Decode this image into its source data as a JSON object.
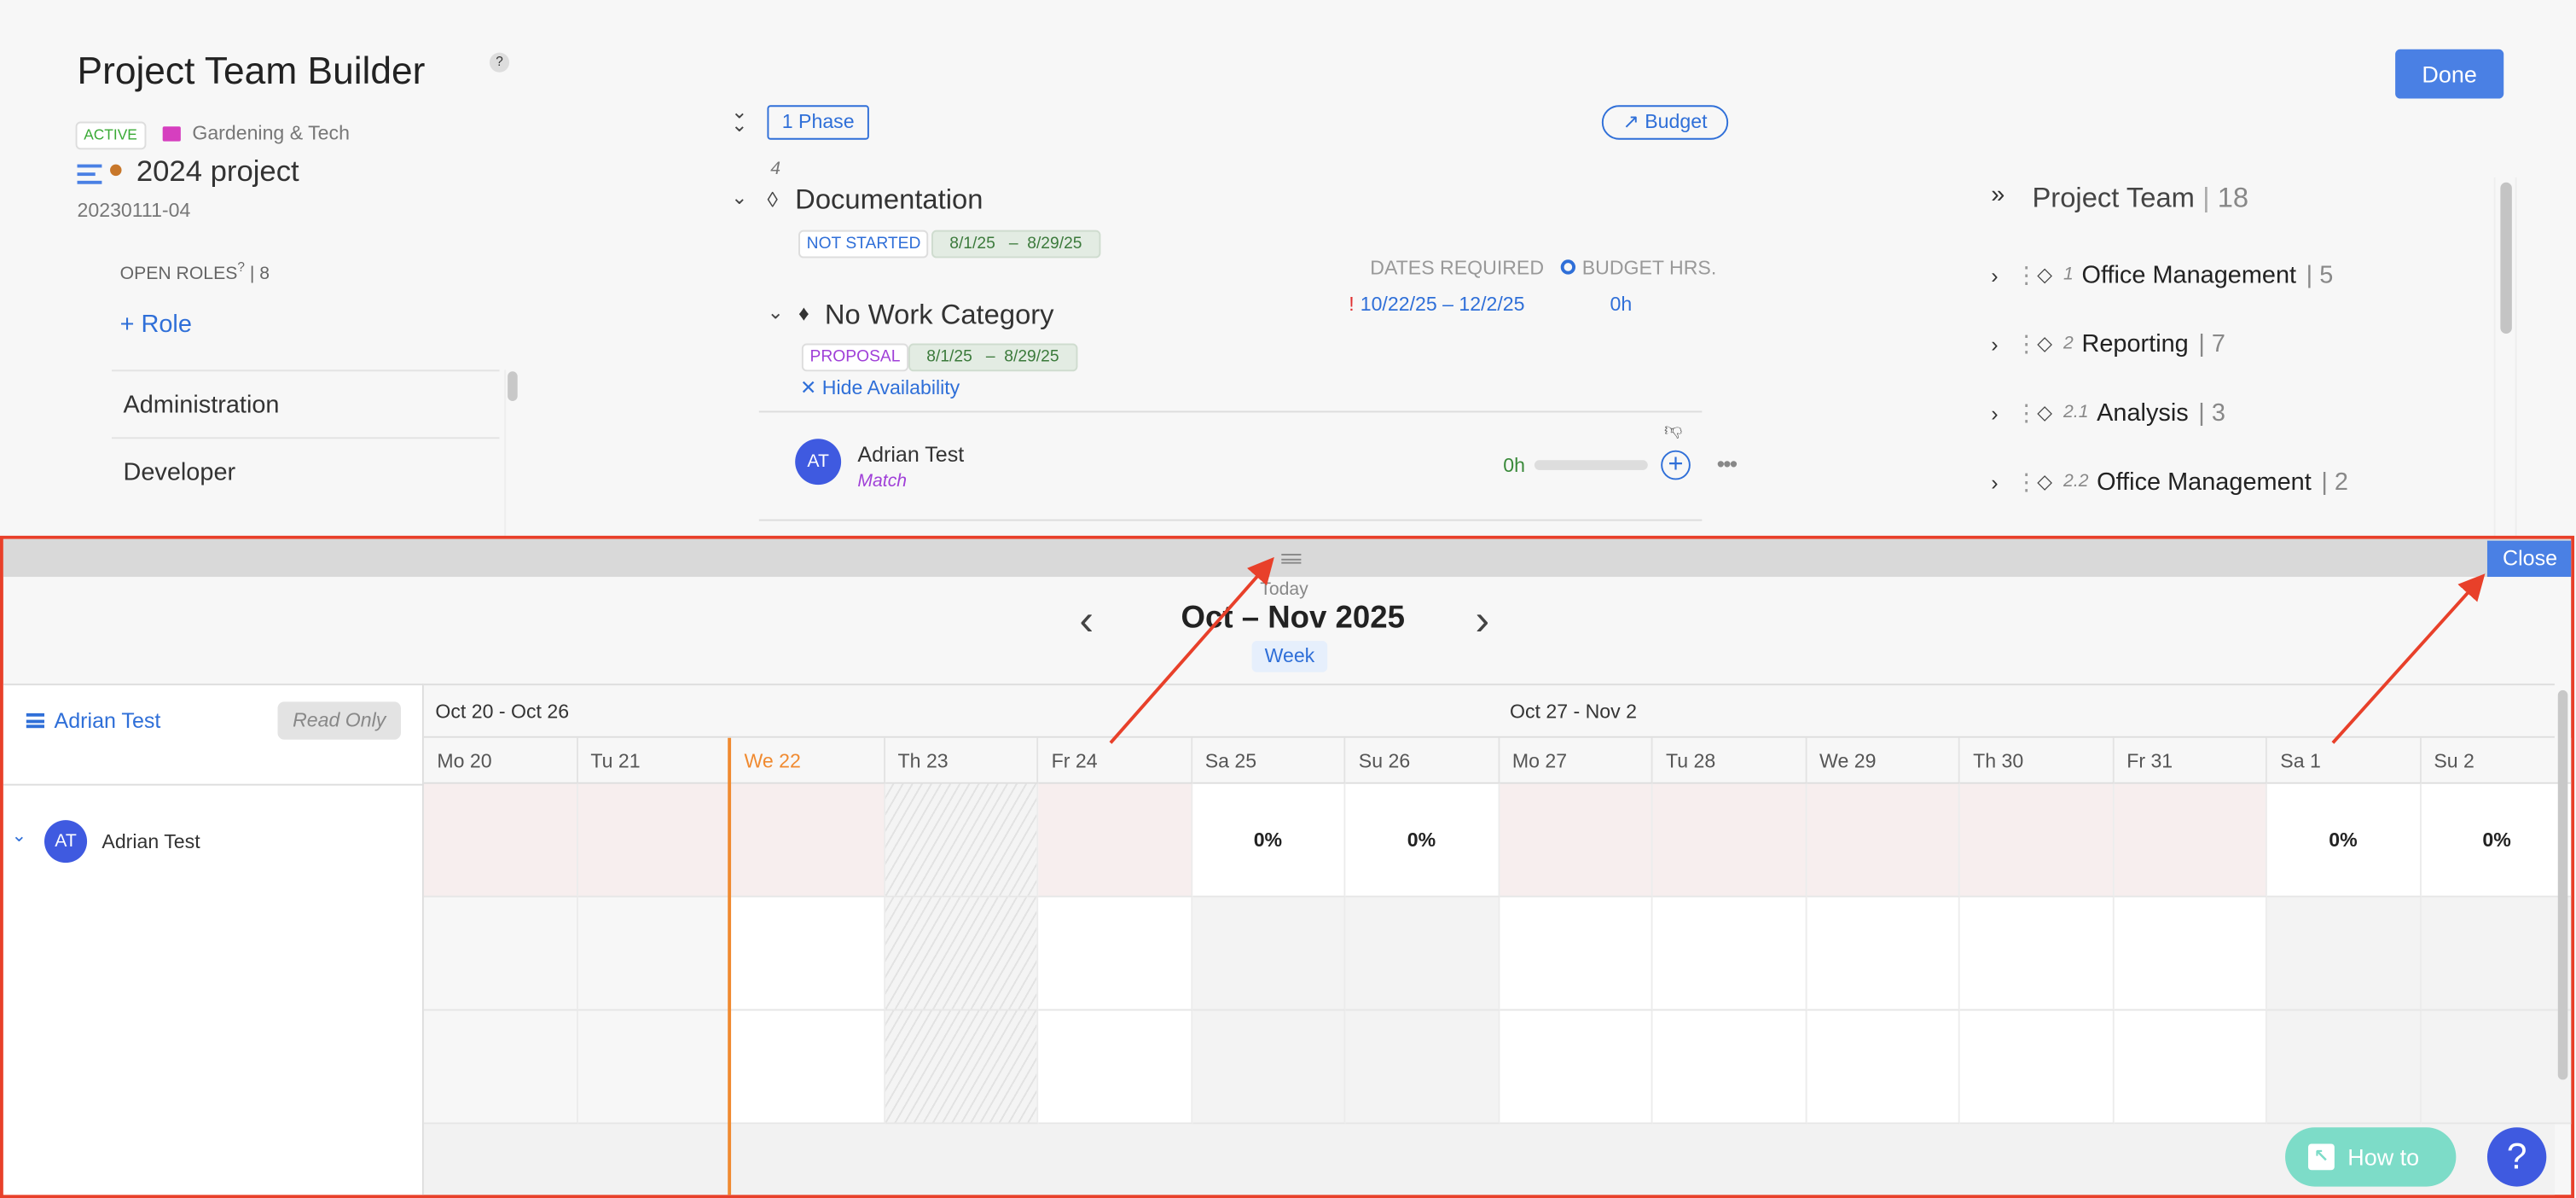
{
  "header": {
    "title": "Project Team Builder",
    "help": "?",
    "status": "ACTIVE",
    "client": "Gardening & Tech",
    "project_name": "2024 project",
    "project_number": "20230111-04",
    "done_label": "Done",
    "colors": {
      "accent": "#4a80e4",
      "active": "#3aaa35",
      "folder": "#d63fbf",
      "dot": "#c8772a"
    }
  },
  "roles": {
    "label": "OPEN ROLES",
    "help": "?",
    "separator": "|",
    "count": "8",
    "add_label": "+ Role",
    "items": [
      "Administration",
      "Developer"
    ]
  },
  "phase": {
    "phase_button": "1 Phase",
    "budget_button": "Budget",
    "phase_number": "4",
    "phase_name": "Documentation",
    "phase_status": "NOT STARTED",
    "phase_dates": "8/1/25   –  8/29/25",
    "dates_required_label": "DATES REQUIRED",
    "budget_hrs_label": "BUDGET HRS.",
    "required_warning": "!",
    "required_dates": "10/22/25 – 12/2/25",
    "budget_hrs": "0h",
    "category": "No Work Category",
    "category_status": "PROPOSAL",
    "category_dates": "8/1/25   –  8/29/25",
    "hide_availability": "Hide Availability",
    "member": {
      "initials": "AT",
      "name": "Adrian Test",
      "match": "Match",
      "hours": "0h",
      "hours_fill": 0
    }
  },
  "team": {
    "title": "Project Team",
    "separator": "|",
    "count": "18",
    "items": [
      {
        "num": "1",
        "name": "Office Management",
        "count": "5"
      },
      {
        "num": "2",
        "name": "Reporting",
        "count": "7"
      },
      {
        "num": "2.1",
        "name": "Analysis",
        "count": "3"
      },
      {
        "num": "2.2",
        "name": "Office Management",
        "count": "2"
      }
    ]
  },
  "calendar": {
    "close_label": "Close",
    "today_label": "Today",
    "range_title": "Oct – Nov 2025",
    "view_label": "Week",
    "left_header_name": "Adrian Test",
    "read_only": "Read Only",
    "member": {
      "initials": "AT",
      "name": "Adrian Test"
    },
    "weeks": [
      "Oct 20 - Oct 26",
      "Oct 27 - Nov 2"
    ],
    "days": [
      {
        "label": "Mo 20",
        "kind": "past",
        "pct": ""
      },
      {
        "label": "Tu 21",
        "kind": "past",
        "pct": ""
      },
      {
        "label": "We 22",
        "kind": "today",
        "pct": ""
      },
      {
        "label": "Th 23",
        "kind": "holiday",
        "pct": ""
      },
      {
        "label": "Fr 24",
        "kind": "work",
        "pct": ""
      },
      {
        "label": "Sa 25",
        "kind": "weekend",
        "pct": "0%"
      },
      {
        "label": "Su 26",
        "kind": "weekend",
        "pct": "0%"
      },
      {
        "label": "Mo 27",
        "kind": "work",
        "pct": ""
      },
      {
        "label": "Tu 28",
        "kind": "work",
        "pct": ""
      },
      {
        "label": "We 29",
        "kind": "work",
        "pct": ""
      },
      {
        "label": "Th 30",
        "kind": "work",
        "pct": ""
      },
      {
        "label": "Fr 31",
        "kind": "work",
        "pct": ""
      },
      {
        "label": "Sa 1",
        "kind": "weekend",
        "pct": "0%"
      },
      {
        "label": "Su 2",
        "kind": "weekend",
        "pct": "0%"
      }
    ],
    "today_color": "#f08a30"
  },
  "footer": {
    "how_to": "How to",
    "help": "?"
  }
}
